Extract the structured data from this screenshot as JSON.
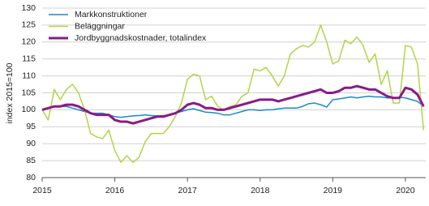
{
  "chart_data": {
    "type": "line",
    "ylabel": "index 2015=100",
    "xlim": [
      2015,
      2020.28
    ],
    "xticks": [
      2015,
      2016,
      2017,
      2018,
      2019,
      2020
    ],
    "ylim": [
      80,
      130
    ],
    "yticks": [
      80,
      85,
      90,
      95,
      100,
      105,
      110,
      115,
      120,
      125,
      130
    ],
    "grid": true,
    "legend": "upper-left",
    "x": [
      2015,
      2015.083,
      2015.167,
      2015.25,
      2015.333,
      2015.417,
      2015.5,
      2015.583,
      2015.667,
      2015.75,
      2015.833,
      2015.917,
      2016,
      2016.083,
      2016.167,
      2016.25,
      2016.333,
      2016.417,
      2016.5,
      2016.583,
      2016.667,
      2016.75,
      2016.833,
      2016.917,
      2017,
      2017.083,
      2017.167,
      2017.25,
      2017.333,
      2017.417,
      2017.5,
      2017.583,
      2017.667,
      2017.75,
      2017.833,
      2017.917,
      2018,
      2018.083,
      2018.167,
      2018.25,
      2018.333,
      2018.417,
      2018.5,
      2018.583,
      2018.667,
      2018.75,
      2018.833,
      2018.917,
      2019,
      2019.083,
      2019.167,
      2019.25,
      2019.333,
      2019.417,
      2019.5,
      2019.583,
      2019.667,
      2019.75,
      2019.833,
      2019.917,
      2020,
      2020.083,
      2020.167,
      2020.25
    ],
    "series": [
      {
        "name": "Markkonstruktioner",
        "color": "#1a8ac6",
        "width": 1.5,
        "values": [
          100,
          100.5,
          101,
          101,
          101,
          100.5,
          100,
          99.5,
          99,
          99,
          99,
          98.5,
          98,
          97.8,
          98,
          98.2,
          98.3,
          98.5,
          98.3,
          98.2,
          98.3,
          98.5,
          99,
          99.5,
          100,
          100.3,
          99.8,
          99.3,
          99.2,
          99,
          98.5,
          98.5,
          99,
          99.5,
          100,
          100,
          99.8,
          100,
          100,
          100.3,
          100.5,
          100.5,
          100.5,
          101,
          101.8,
          102,
          101.5,
          100.8,
          103,
          103.2,
          103.5,
          103.8,
          103.5,
          103.8,
          104,
          103.8,
          103.8,
          103.5,
          103.5,
          103.7,
          103.5,
          103,
          102.5,
          101
        ]
      },
      {
        "name": "Beläggningar",
        "color": "#b2d448",
        "width": 1.5,
        "values": [
          100,
          97,
          106,
          103,
          106,
          107.5,
          105,
          100,
          93,
          92,
          91.5,
          94,
          88,
          84.5,
          86.5,
          84.5,
          86,
          90.5,
          93,
          93,
          93,
          95,
          98,
          102,
          109,
          110.5,
          110,
          103,
          104,
          101,
          100,
          101,
          101.5,
          104,
          105,
          112,
          111.5,
          112.5,
          110,
          107,
          110,
          116.5,
          118,
          119,
          118.5,
          120,
          125,
          120,
          113.5,
          114.5,
          120.5,
          119.5,
          121.5,
          119,
          114,
          116.5,
          107.5,
          111.5,
          102,
          102,
          119,
          118.5,
          113.5,
          94
        ]
      },
      {
        "name": "Jordbyggnadskostnader, totalindex",
        "color": "#8a1a88",
        "width": 3,
        "values": [
          100,
          100.5,
          101,
          101,
          101.5,
          101.5,
          101,
          100,
          99,
          98.5,
          98.5,
          98.5,
          97,
          96.5,
          96.5,
          96,
          96.5,
          97,
          97.5,
          98,
          98,
          98.5,
          99,
          100,
          101.5,
          102,
          101.5,
          100.5,
          100.5,
          100,
          100,
          100.5,
          101,
          101.5,
          102,
          102.5,
          103,
          103,
          103,
          102.5,
          103,
          103.5,
          104,
          104.5,
          105,
          105.5,
          106,
          105,
          105,
          105.5,
          106.5,
          106.5,
          107,
          106.5,
          106,
          106,
          105,
          104,
          103.5,
          103.5,
          106.5,
          106,
          104.5,
          101
        ]
      }
    ]
  }
}
